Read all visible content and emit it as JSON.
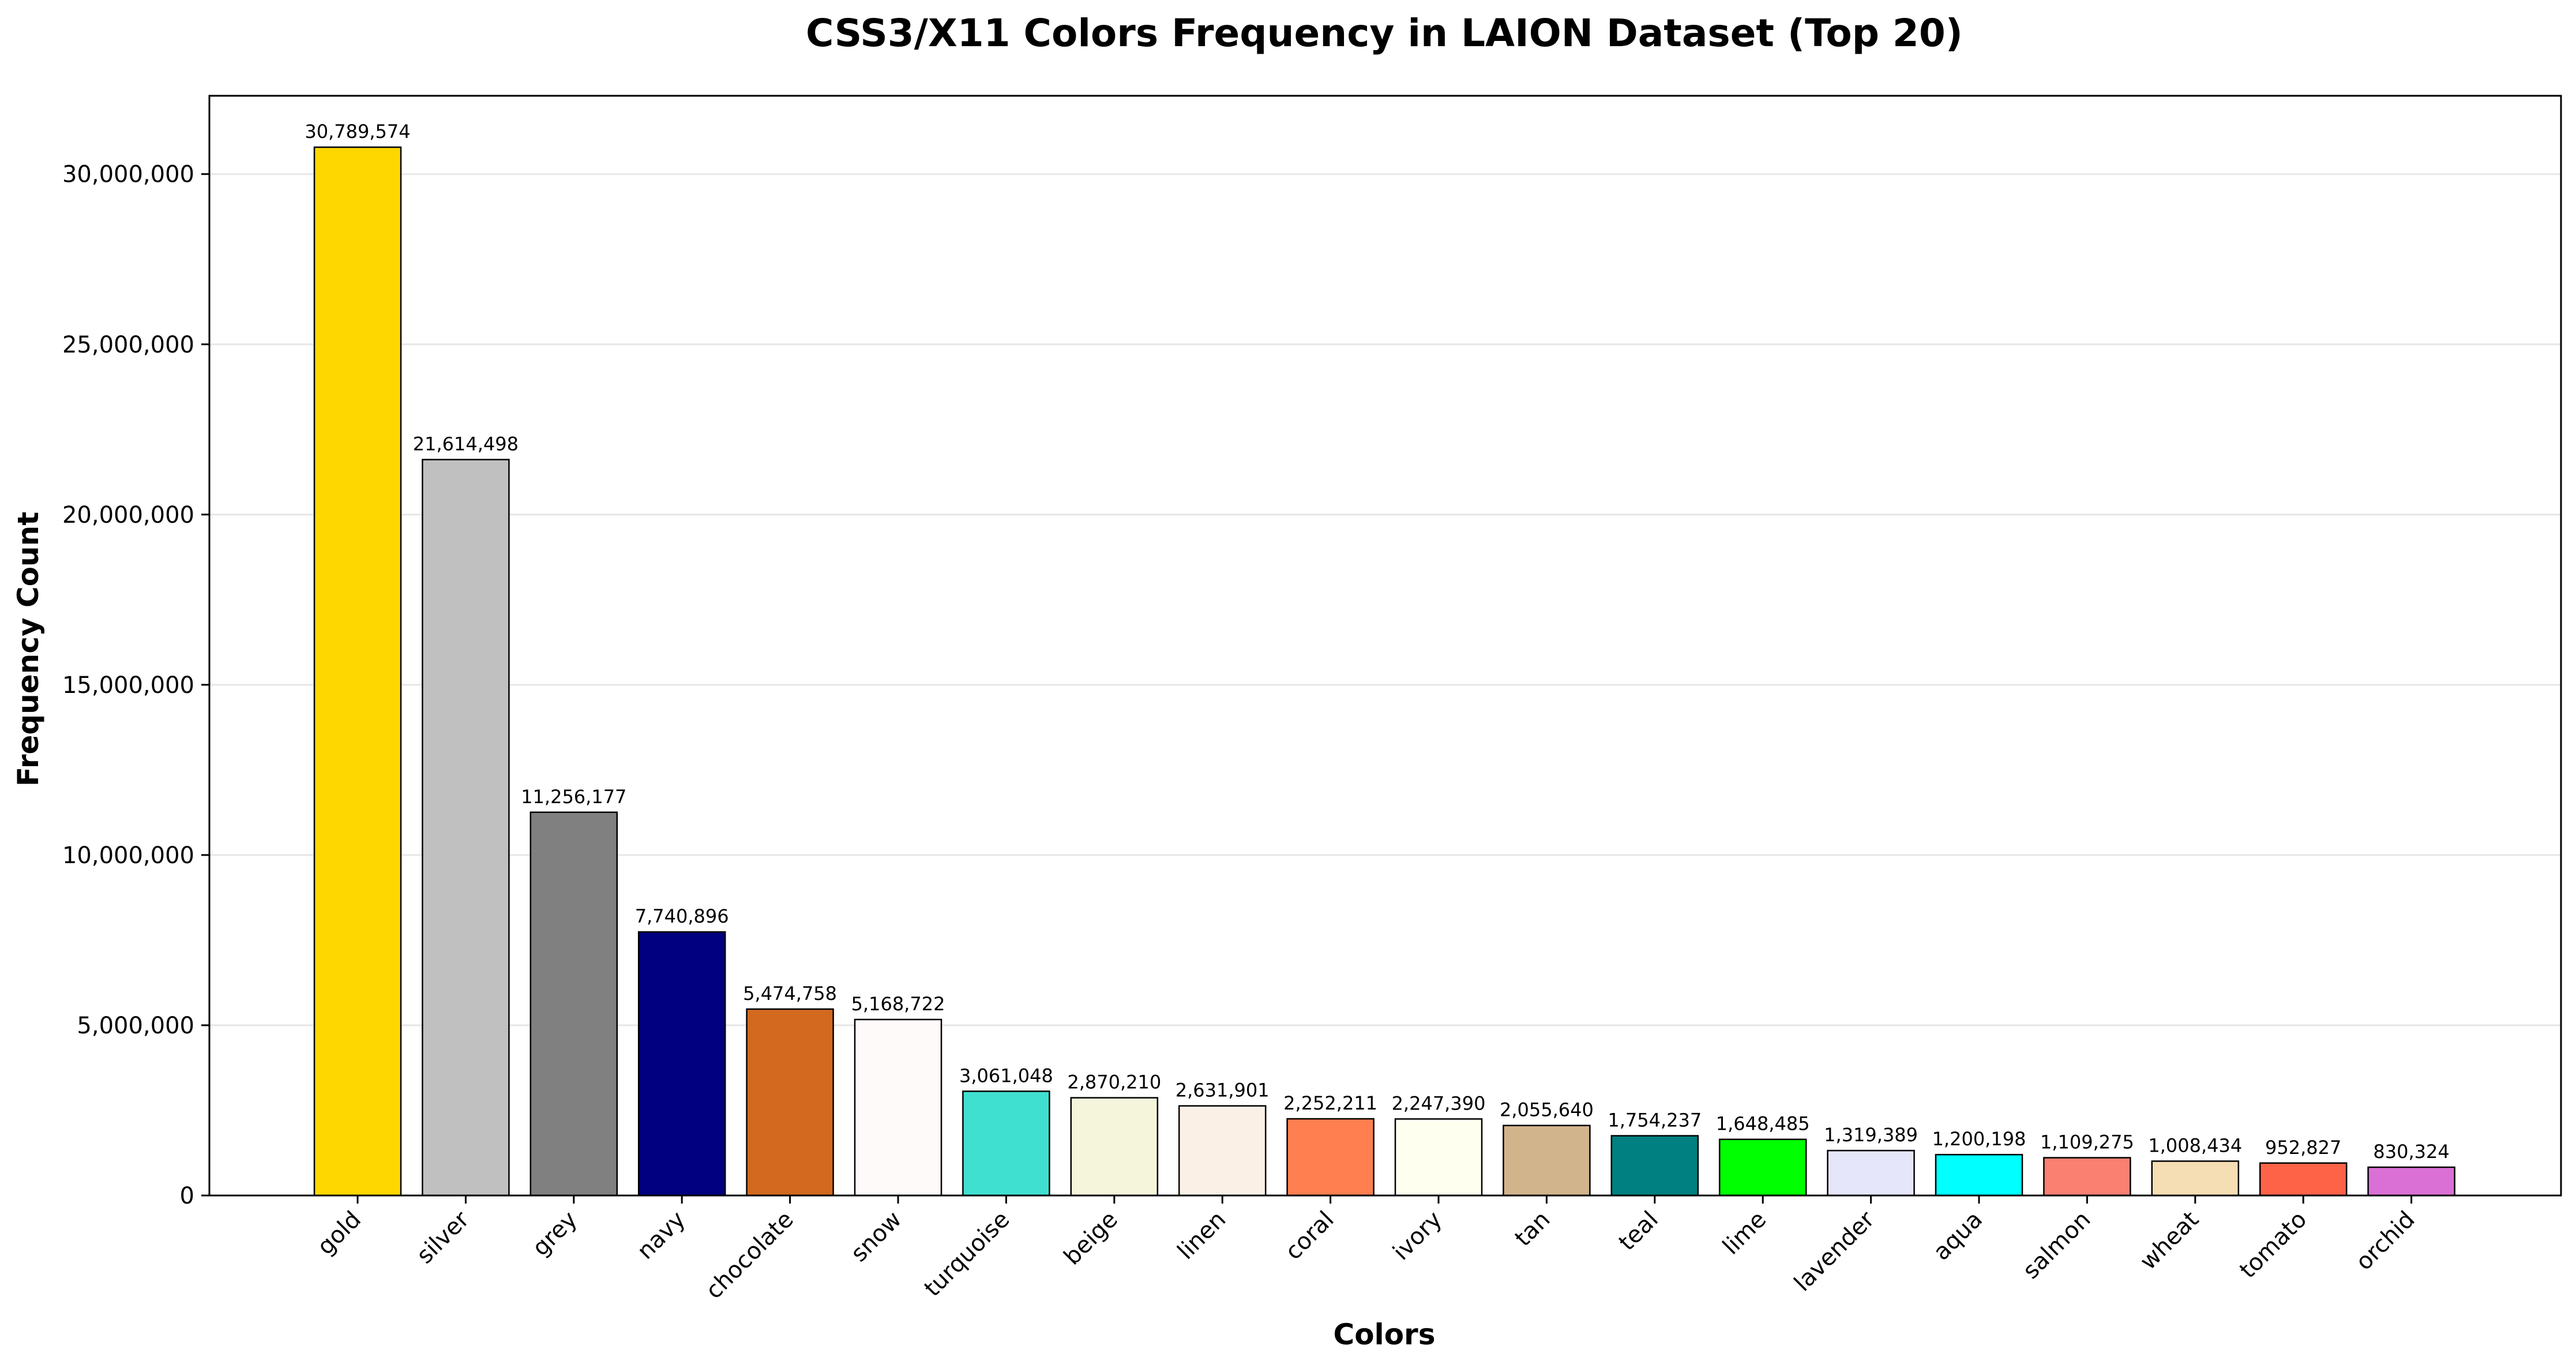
{
  "chart_data": {
    "type": "bar",
    "title": "CSS3/X11 Colors Frequency in LAION Dataset (Top 20)",
    "xlabel": "Colors",
    "ylabel": "Frequency Count",
    "ylim": [
      0,
      32300000
    ],
    "yticks": [
      0,
      5000000,
      10000000,
      15000000,
      20000000,
      25000000,
      30000000
    ],
    "ytick_labels": [
      "0",
      "5,000,000",
      "10,000,000",
      "15,000,000",
      "20,000,000",
      "25,000,000",
      "30,000,000"
    ],
    "grid": "horizontal",
    "categories": [
      "gold",
      "silver",
      "grey",
      "navy",
      "chocolate",
      "snow",
      "turquoise",
      "beige",
      "linen",
      "coral",
      "ivory",
      "tan",
      "teal",
      "lime",
      "lavender",
      "aqua",
      "salmon",
      "wheat",
      "tomato",
      "orchid"
    ],
    "values": [
      30789574,
      21614498,
      11256177,
      7740896,
      5474758,
      5168722,
      3061048,
      2870210,
      2631901,
      2252211,
      2247390,
      2055640,
      1754237,
      1648485,
      1319389,
      1200198,
      1109275,
      1008434,
      952827,
      830324
    ],
    "value_labels": [
      "30,789,574",
      "21,614,498",
      "11,256,177",
      "7,740,896",
      "5,474,758",
      "5,168,722",
      "3,061,048",
      "2,870,210",
      "2,631,901",
      "2,252,211",
      "2,247,390",
      "2,055,640",
      "1,754,237",
      "1,648,485",
      "1,319,389",
      "1,200,198",
      "1,109,275",
      "1,008,434",
      "952,827",
      "830,324"
    ],
    "colors": [
      "#FFD700",
      "#C0C0C0",
      "#808080",
      "#000080",
      "#D2691E",
      "#FFFAFA",
      "#40E0D0",
      "#F5F5DC",
      "#FAF0E6",
      "#FF7F50",
      "#FFFFF0",
      "#D2B48C",
      "#008080",
      "#00FF00",
      "#E6E6FA",
      "#00FFFF",
      "#FA8072",
      "#F5DEB3",
      "#FF6347",
      "#DA70D6"
    ],
    "bar_edge_color": "#000000",
    "grid_color": "#e6e6e6"
  }
}
